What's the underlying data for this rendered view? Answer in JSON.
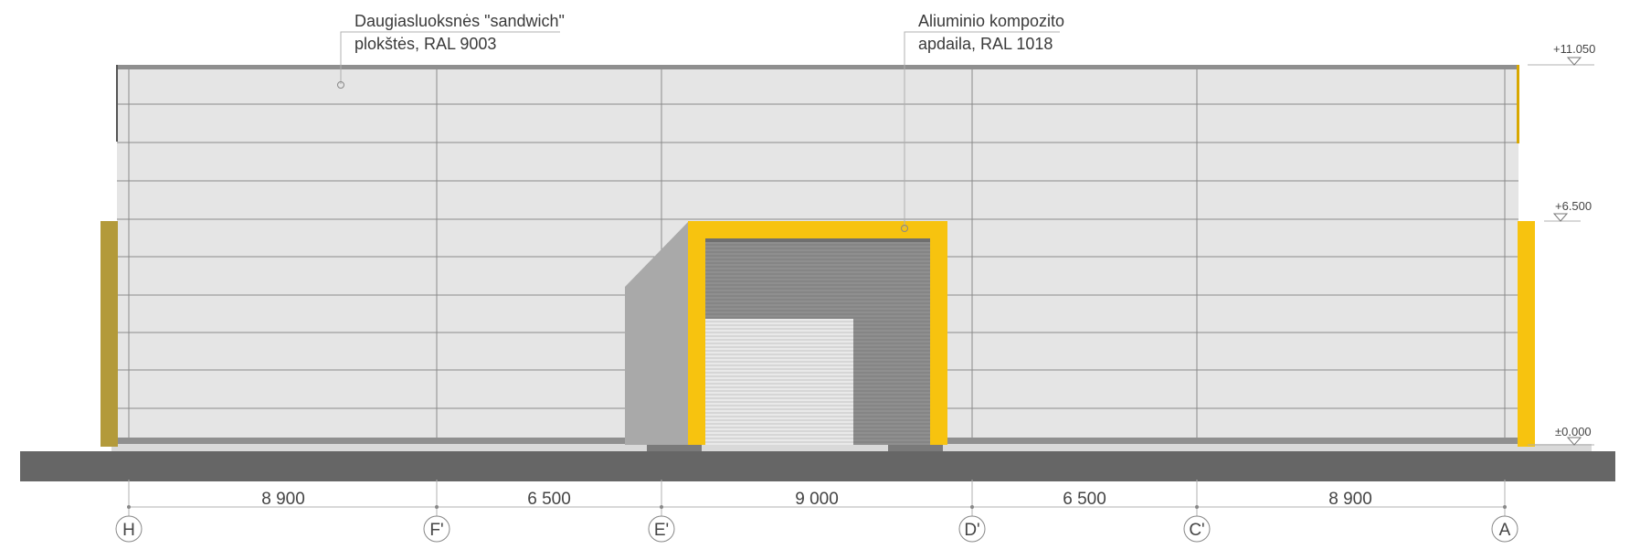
{
  "callouts": [
    {
      "line1": "Daugiasluoksnės \"sandwich\"",
      "line2": "plokštės, RAL 9003"
    },
    {
      "line1": "Aliuminio kompozito",
      "line2": "apdaila, RAL 1018"
    }
  ],
  "levels": [
    "+11.050",
    "+6.500",
    "±0.000"
  ],
  "dimensions": [
    "8 900",
    "6 500",
    "9 000",
    "6 500",
    "8 900"
  ],
  "axes": [
    "H",
    "F'",
    "E'",
    "D'",
    "C'",
    "A"
  ],
  "colors": {
    "panel": "#e5e5e5",
    "panel_line": "#8a8a8a",
    "accent_yellow": "#f7c30f",
    "ochre_edge": "#b39a3a",
    "shadow_gray": "#a9a9a9",
    "door_dark": "#8f8f8f",
    "ground": "#666666"
  }
}
